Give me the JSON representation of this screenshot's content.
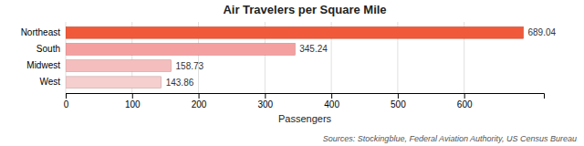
{
  "chart_data": {
    "type": "bar",
    "orientation": "horizontal",
    "title": "Air Travelers per Square Mile",
    "categories": [
      "Northeast",
      "South",
      "Midwest",
      "West"
    ],
    "values": [
      689.04,
      345.24,
      158.73,
      143.86
    ],
    "colors": [
      "#f05a3a",
      "#f5a0a0",
      "#f5bebe",
      "#f5cece"
    ],
    "xlabel": "Passengers",
    "xlim": [
      0,
      720
    ],
    "xticks": [
      0,
      100,
      200,
      300,
      400,
      500,
      600
    ],
    "grid": true,
    "data_labels": true,
    "annotations": [
      "Sources: Stockingblue, Federal Aviation Authority, US Census Bureau"
    ]
  }
}
